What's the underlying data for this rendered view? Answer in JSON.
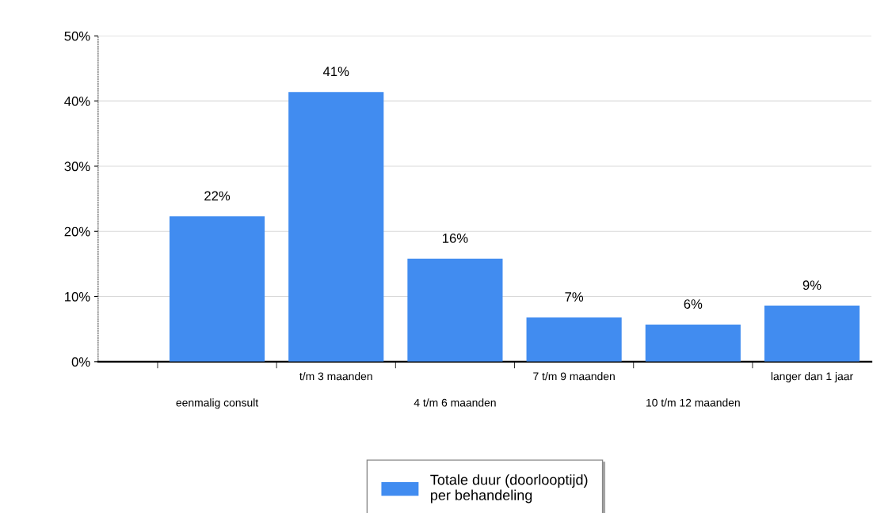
{
  "chart_data": {
    "type": "bar",
    "categories": [
      "eenmalig consult",
      "t/m 3 maanden",
      "4 t/m 6 maanden",
      "7 t/m 9 maanden",
      "10 t/m 12 maanden",
      "langer dan 1 jaar"
    ],
    "series": [
      {
        "name": "Totale duur (doorlooptijd)\nper behandeling",
        "color": "#418cf0",
        "values": [
          22.3,
          41.4,
          15.8,
          6.8,
          5.7,
          8.6
        ],
        "value_labels": [
          "22%",
          "41%",
          "16%",
          "7%",
          "6%",
          "9%"
        ]
      }
    ],
    "ylim": [
      0,
      50
    ],
    "yticks": [
      {
        "value": 0,
        "label": "0%"
      },
      {
        "value": 10,
        "label": "10%"
      },
      {
        "value": 20,
        "label": "20%"
      },
      {
        "value": 30,
        "label": "30%"
      },
      {
        "value": 40,
        "label": "40%"
      },
      {
        "value": 50,
        "label": "50%"
      }
    ],
    "grid": "y",
    "legend": "bottom"
  }
}
